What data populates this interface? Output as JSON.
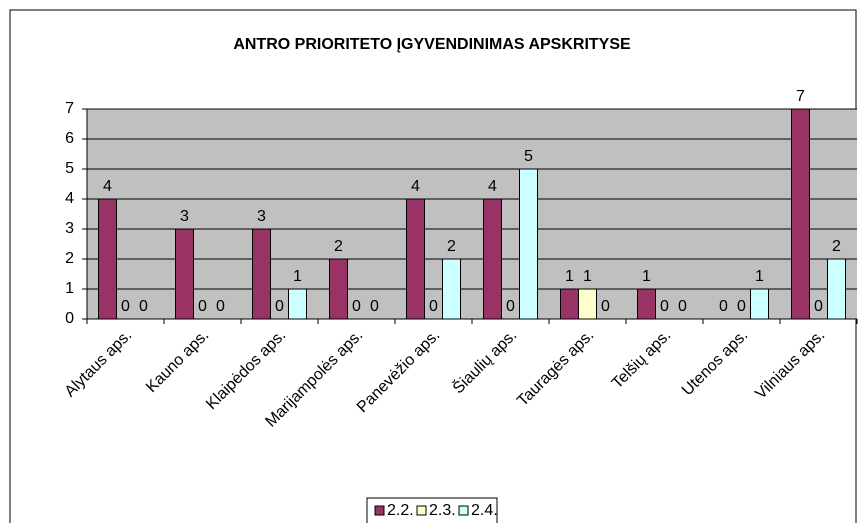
{
  "chart_data": {
    "type": "bar",
    "title": "ANTRO PRIORITETO ĮGYVENDINIMAS APSKRITYSE",
    "categories": [
      "Alytaus aps.",
      "Kauno aps.",
      "Klaipėdos aps.",
      "Marijampolės aps.",
      "Panevėžio aps.",
      "Šiaulių aps.",
      "Tauragės aps.",
      "Telšių aps.",
      "Utenos aps.",
      "Vilniaus aps."
    ],
    "series": [
      {
        "name": "2.2.",
        "color": "#993366",
        "values": [
          4,
          3,
          3,
          2,
          4,
          4,
          1,
          1,
          0,
          7
        ]
      },
      {
        "name": "2.3.",
        "color": "#FFFFCC",
        "values": [
          0,
          0,
          0,
          0,
          0,
          0,
          1,
          0,
          0,
          0
        ]
      },
      {
        "name": "2.4.",
        "color": "#CCFFFF",
        "values": [
          0,
          0,
          1,
          0,
          2,
          5,
          0,
          0,
          1,
          2
        ]
      }
    ],
    "ylim": [
      0,
      7
    ],
    "yticks": [
      0,
      1,
      2,
      3,
      4,
      5,
      6,
      7
    ],
    "grid": true,
    "legend": "bottom"
  }
}
